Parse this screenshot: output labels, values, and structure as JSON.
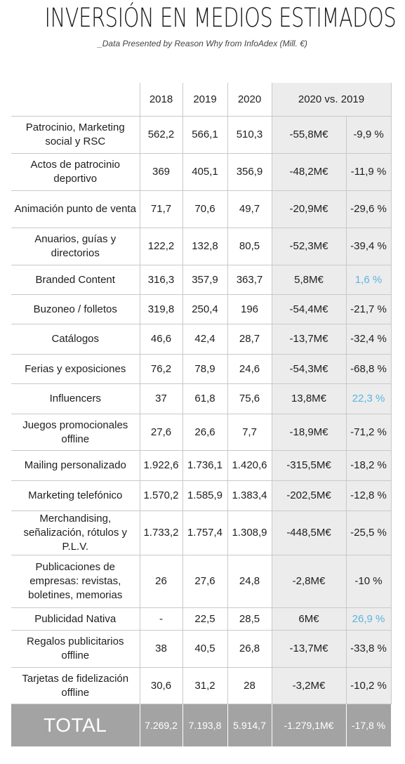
{
  "title": "INVERSIÓN EN MEDIOS ESTIMADOS",
  "subtitle": "_Data Presented by Reason Why from InfoAdex (Mill. €)",
  "colors": {
    "positive_change": "#5ab4e0",
    "highlight_column_bg": "#ececec",
    "total_row_bg": "#a3a3a3"
  },
  "chart_data": {
    "type": "table",
    "columns": [
      "2018",
      "2019",
      "2020",
      "2020 vs. 2019"
    ],
    "rows": [
      {
        "label": "Patrocinio, Marketing social y RSC",
        "y2018": "562,2",
        "y2019": "566,1",
        "y2020": "510,3",
        "diff": "-55,8M€",
        "pct": "-9,9 %"
      },
      {
        "label": "Actos de patrocinio deportivo",
        "y2018": "369",
        "y2019": "405,1",
        "y2020": "356,9",
        "diff": "-48,2M€",
        "pct": "-11,9 %"
      },
      {
        "label": "Animación punto de venta",
        "y2018": "71,7",
        "y2019": "70,6",
        "y2020": "49,7",
        "diff": "-20,9M€",
        "pct": "-29,6 %"
      },
      {
        "label": "Anuarios, guías y directorios",
        "y2018": "122,2",
        "y2019": "132,8",
        "y2020": "80,5",
        "diff": "-52,3M€",
        "pct": "-39,4 %"
      },
      {
        "label": "Branded Content",
        "y2018": "316,3",
        "y2019": "357,9",
        "y2020": "363,7",
        "diff": "5,8M€",
        "pct": "1,6 %"
      },
      {
        "label": "Buzoneo / folletos",
        "y2018": "319,8",
        "y2019": "250,4",
        "y2020": "196",
        "diff": "-54,4M€",
        "pct": "-21,7 %"
      },
      {
        "label": "Catálogos",
        "y2018": "46,6",
        "y2019": "42,4",
        "y2020": "28,7",
        "diff": "-13,7M€",
        "pct": "-32,4 %"
      },
      {
        "label": "Ferias y exposiciones",
        "y2018": "76,2",
        "y2019": "78,9",
        "y2020": "24,6",
        "diff": "-54,3M€",
        "pct": "-68,8 %"
      },
      {
        "label": "Influencers",
        "y2018": "37",
        "y2019": "61,8",
        "y2020": "75,6",
        "diff": "13,8M€",
        "pct": "22,3 %"
      },
      {
        "label": "Juegos promocionales offline",
        "y2018": "27,6",
        "y2019": "26,6",
        "y2020": "7,7",
        "diff": "-18,9M€",
        "pct": "-71,2 %"
      },
      {
        "label": "Mailing personalizado",
        "y2018": "1.922,6",
        "y2019": "1.736,1",
        "y2020": "1.420,6",
        "diff": "-315,5M€",
        "pct": "-18,2 %"
      },
      {
        "label": "Marketing telefónico",
        "y2018": "1.570,2",
        "y2019": "1.585,9",
        "y2020": "1.383,4",
        "diff": "-202,5M€",
        "pct": "-12,8 %"
      },
      {
        "label": "Merchandising, señalización, rótulos y P.L.V.",
        "y2018": "1.733,2",
        "y2019": "1.757,4",
        "y2020": "1.308,9",
        "diff": "-448,5M€",
        "pct": "-25,5 %"
      },
      {
        "label": "Publicaciones de empresas: revistas, boletines, memorias",
        "y2018": "26",
        "y2019": "27,6",
        "y2020": "24,8",
        "diff": "-2,8M€",
        "pct": "-10 %"
      },
      {
        "label": "Publicidad Nativa",
        "y2018": "-",
        "y2019": "22,5",
        "y2020": "28,5",
        "diff": "6M€",
        "pct": "26,9 %"
      },
      {
        "label": "Regalos publicitarios offline",
        "y2018": "38",
        "y2019": "40,5",
        "y2020": "26,8",
        "diff": "-13,7M€",
        "pct": "-33,8 %"
      },
      {
        "label": "Tarjetas de fidelización offline",
        "y2018": "30,6",
        "y2019": "31,2",
        "y2020": "28",
        "diff": "-3,2M€",
        "pct": "-10,2 %"
      }
    ],
    "total": {
      "label": "TOTAL",
      "y2018": "7.269,2",
      "y2019": "7.193,8",
      "y2020": "5.914,7",
      "diff": "-1.279,1M€",
      "pct": "-17,8 %"
    }
  }
}
